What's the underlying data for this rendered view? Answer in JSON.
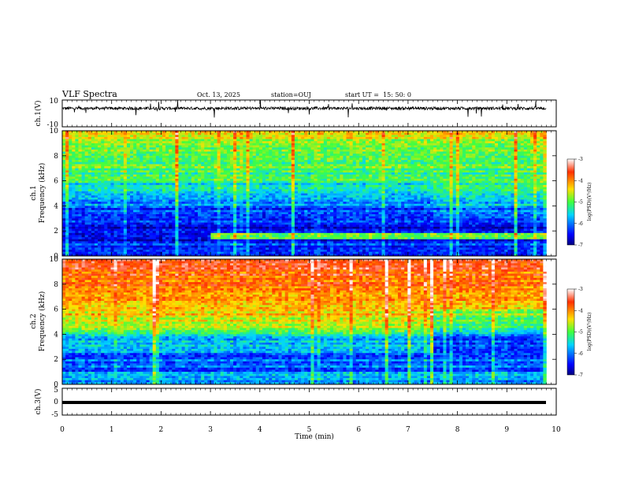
{
  "header": {
    "title": "VLF Spectra",
    "date": "Oct. 13, 2025",
    "station": "station=OUJ",
    "start": "start UT =  15: 50: 0"
  },
  "chart_data": [
    {
      "type": "line",
      "name": "waveform-ch1",
      "ylabel": "ch.1(V)",
      "ylim": [
        -10,
        10
      ],
      "yticks": [
        "10",
        "-10"
      ],
      "xlim": [
        0,
        10
      ],
      "note": "noisy waveform centered near 4 V with spikes"
    },
    {
      "type": "heatmap",
      "name": "spectrogram-ch1",
      "ylabel_top": "ch.1",
      "ylabel": "Frequency (kHz)",
      "ylim": [
        0,
        10
      ],
      "yticks": [
        "0",
        "2",
        "4",
        "6",
        "8",
        "10"
      ],
      "xlim": [
        0,
        9.8
      ],
      "colorbar": {
        "label": "log(PSD)(V²/Hz)",
        "range": [
          -7,
          -3
        ],
        "ticks": [
          "-3",
          "-4",
          "-5",
          "-6",
          "-7"
        ]
      }
    },
    {
      "type": "heatmap",
      "name": "spectrogram-ch2",
      "ylabel_top": "ch.2",
      "ylabel": "Frequency (kHz)",
      "ylim": [
        0,
        10
      ],
      "yticks": [
        "0",
        "2",
        "4",
        "6",
        "8",
        "10"
      ],
      "xlim": [
        0,
        9.8
      ],
      "colorbar": {
        "label": "log(PSD)(V²/Hz)",
        "range": [
          -7,
          -3
        ],
        "ticks": [
          "-3",
          "-4",
          "-5",
          "-6",
          "-7"
        ]
      }
    },
    {
      "type": "line",
      "name": "waveform-ch3",
      "ylabel": "ch.3(V)",
      "ylim": [
        -5,
        5
      ],
      "yticks": [
        "5",
        "0",
        "-5"
      ],
      "xlim": [
        0,
        10
      ],
      "note": "flat line at about -0.8 V"
    }
  ],
  "xaxis": {
    "label": "Time (min)",
    "ticks": [
      "0",
      "1",
      "2",
      "3",
      "4",
      "5",
      "6",
      "7",
      "8",
      "9",
      "10"
    ]
  }
}
